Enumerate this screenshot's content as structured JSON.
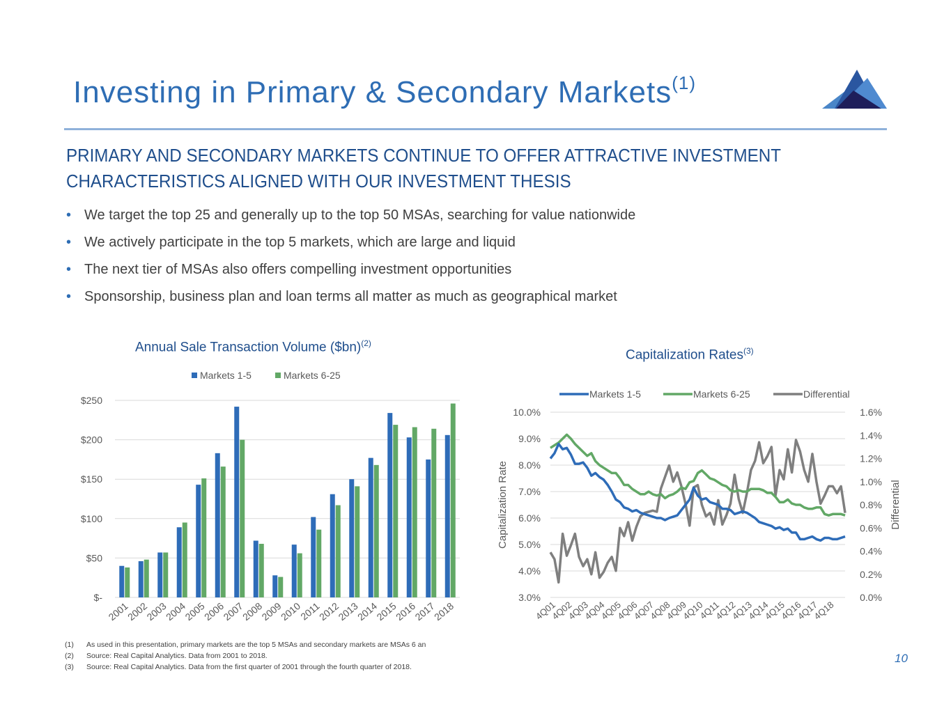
{
  "slide": {
    "title": "Investing in Primary & Secondary Markets",
    "title_note": "(1)",
    "subheading_line1": "PRIMARY AND SECONDARY MARKETS CONTINUE TO OFFER ATTRACTIVE INVESTMENT",
    "subheading_line2": "CHARACTERISTICS ALIGNED WITH OUR INVESTMENT THESIS",
    "bullets": [
      "We target the top 25 and generally up to the top 50 MSAs, searching for value nationwide",
      "We actively participate in the top 5 markets, which are large and liquid",
      "The next tier of MSAs also offers compelling investment opportunities",
      "Sponsorship, business plan and loan terms all matter as much as geographical market"
    ],
    "footnotes": [
      {
        "num": "(1)",
        "text": "As used in this presentation, primary markets are the top 5 MSAs and secondary markets are MSAs 6 an"
      },
      {
        "num": "(2)",
        "text": "Source: Real Capital Analytics. Data from 2001 to 2018."
      },
      {
        "num": "(3)",
        "text": "Source: Real Capital Analytics. Data from the first quarter of 2001 through the fourth quarter of 2018."
      }
    ],
    "page_number": "10",
    "colors": {
      "accent": "#2e6db4",
      "blue": "#2e6cb8",
      "green": "#62a866",
      "gray": "#7f7f7f"
    }
  },
  "chart_data": [
    {
      "type": "bar",
      "title": "Annual Sale Transaction Volume ($bn)",
      "title_note": "(2)",
      "categories": [
        "2001",
        "2002",
        "2003",
        "2004",
        "2005",
        "2006",
        "2007",
        "2008",
        "2009",
        "2010",
        "2011",
        "2012",
        "2013",
        "2014",
        "2015",
        "2016",
        "2017",
        "2018"
      ],
      "series": [
        {
          "name": "Markets 1-5",
          "color": "#2e6cb8",
          "values": [
            40,
            46,
            57,
            89,
            143,
            183,
            242,
            72,
            28,
            67,
            102,
            131,
            150,
            177,
            234,
            203,
            175,
            206
          ]
        },
        {
          "name": "Markets 6-25",
          "color": "#62a866",
          "values": [
            38,
            48,
            57,
            95,
            151,
            166,
            200,
            68,
            26,
            56,
            86,
            117,
            141,
            168,
            219,
            216,
            214,
            246
          ]
        }
      ],
      "ylim": [
        0,
        250
      ],
      "yticks": [
        0,
        50,
        100,
        150,
        200,
        250
      ],
      "ytick_labels": [
        "$-",
        "$50",
        "$100",
        "$150",
        "$200",
        "$250"
      ],
      "legend": "top",
      "grid": true
    },
    {
      "type": "line",
      "title": "Capitalization Rates",
      "title_note": "(3)",
      "ylabel": "Capitalization Rate",
      "y2label": "Differential",
      "x_tick_labels": [
        "4Q01",
        "4Q02",
        "4Q03",
        "4Q04",
        "4Q05",
        "4Q06",
        "4Q07",
        "4Q08",
        "4Q09",
        "4Q10",
        "4Q11",
        "4Q12",
        "4Q13",
        "4Q14",
        "4Q15",
        "4Q16",
        "4Q17",
        "4Q18"
      ],
      "ylim": [
        3.0,
        10.0
      ],
      "yticks": [
        "3.0%",
        "4.0%",
        "5.0%",
        "6.0%",
        "7.0%",
        "8.0%",
        "9.0%",
        "10.0%"
      ],
      "y2lim": [
        0.0,
        1.6
      ],
      "y2ticks": [
        "0.0%",
        "0.2%",
        "0.4%",
        "0.6%",
        "0.8%",
        "1.0%",
        "1.2%",
        "1.4%",
        "1.6%"
      ],
      "legend": "top",
      "grid": true,
      "series": [
        {
          "name": "Markets 1-5",
          "axis": "left",
          "color": "#2e6cb8",
          "values": [
            8.25,
            8.45,
            8.8,
            8.6,
            8.65,
            8.4,
            8.05,
            8.05,
            8.1,
            7.9,
            7.6,
            7.7,
            7.55,
            7.45,
            7.25,
            7.0,
            6.7,
            6.6,
            6.4,
            6.35,
            6.25,
            6.3,
            6.2,
            6.15,
            6.1,
            6.05,
            6.0,
            6.0,
            5.92,
            6.0,
            6.05,
            6.1,
            6.3,
            6.5,
            6.7,
            7.15,
            6.85,
            6.7,
            6.75,
            6.6,
            6.55,
            6.5,
            6.35,
            6.35,
            6.3,
            6.15,
            6.2,
            6.25,
            6.2,
            6.1,
            6.0,
            5.85,
            5.8,
            5.75,
            5.7,
            5.6,
            5.65,
            5.55,
            5.6,
            5.45,
            5.45,
            5.2,
            5.2,
            5.25,
            5.3,
            5.2,
            5.15,
            5.25,
            5.25,
            5.2,
            5.2,
            5.25,
            5.3
          ]
        },
        {
          "name": "Markets 6-25",
          "axis": "left",
          "color": "#62a866",
          "values": [
            8.65,
            8.75,
            8.85,
            9.0,
            9.15,
            9.0,
            8.8,
            8.65,
            8.5,
            8.35,
            8.45,
            8.15,
            8.0,
            7.9,
            7.8,
            7.7,
            7.7,
            7.5,
            7.25,
            7.25,
            7.1,
            7.0,
            6.9,
            6.9,
            7.0,
            6.9,
            6.85,
            6.9,
            6.75,
            6.85,
            6.9,
            7.0,
            7.15,
            7.1,
            7.35,
            7.4,
            7.7,
            7.8,
            7.65,
            7.5,
            7.45,
            7.35,
            7.25,
            7.2,
            7.05,
            7.0,
            7.05,
            7.0,
            7.0,
            7.1,
            7.1,
            7.1,
            7.05,
            6.95,
            6.95,
            6.8,
            6.6,
            6.6,
            6.7,
            6.55,
            6.5,
            6.5,
            6.4,
            6.35,
            6.35,
            6.4,
            6.4,
            6.15,
            6.1,
            6.15,
            6.15,
            6.15,
            6.1
          ]
        },
        {
          "name": "Differential",
          "axis": "right",
          "color": "#7f7f7f",
          "values": [
            0.39,
            0.33,
            0.13,
            0.55,
            0.36,
            0.45,
            0.55,
            0.35,
            0.27,
            0.33,
            0.2,
            0.39,
            0.17,
            0.22,
            0.3,
            0.35,
            0.23,
            0.6,
            0.53,
            0.65,
            0.49,
            0.61,
            0.7,
            0.73,
            0.74,
            0.75,
            0.74,
            0.94,
            1.04,
            1.14,
            1.0,
            1.08,
            0.96,
            0.81,
            0.62,
            0.95,
            0.97,
            0.8,
            0.7,
            0.73,
            0.63,
            0.84,
            0.63,
            0.71,
            0.81,
            1.06,
            0.85,
            0.73,
            0.9,
            1.1,
            1.18,
            1.34,
            1.16,
            1.22,
            1.3,
            0.88,
            1.1,
            1.02,
            1.28,
            1.08,
            1.36,
            1.26,
            1.1,
            1.0,
            1.24,
            1.0,
            0.81,
            0.88,
            0.96,
            0.96,
            0.9,
            0.96,
            0.73
          ]
        }
      ]
    }
  ]
}
